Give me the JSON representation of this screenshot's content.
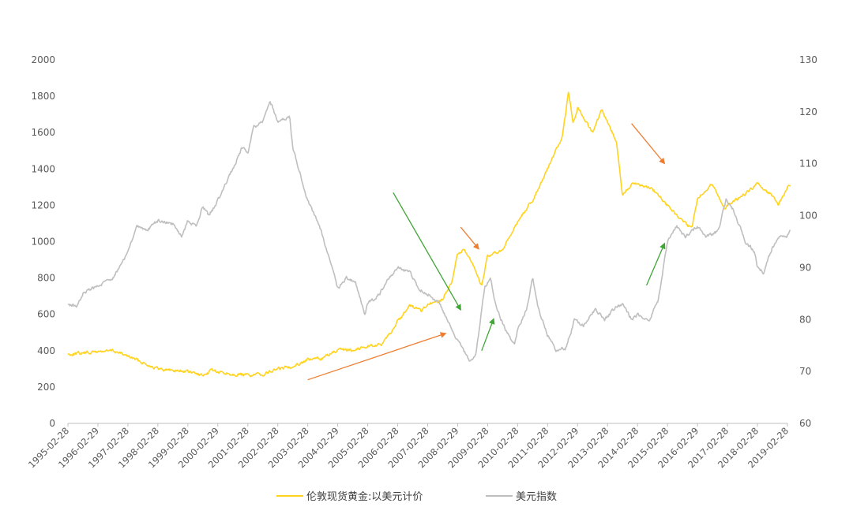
{
  "chart_data": {
    "type": "line",
    "title": "",
    "x_labels": [
      "1995-02-28",
      "1996-02-29",
      "1997-02-28",
      "1998-02-28",
      "1999-02-28",
      "2000-02-29",
      "2001-02-28",
      "2002-02-28",
      "2003-02-28",
      "2004-02-29",
      "2005-02-28",
      "2006-02-28",
      "2007-02-28",
      "2008-02-29",
      "2009-02-28",
      "2010-02-28",
      "2011-02-28",
      "2012-02-29",
      "2013-02-28",
      "2014-02-28",
      "2015-02-28",
      "2016-02-29",
      "2017-02-28",
      "2018-02-28",
      "2019-02-28"
    ],
    "left_axis": {
      "min": 0,
      "max": 2000,
      "ticks": [
        "0",
        "200",
        "400",
        "600",
        "800",
        "1000",
        "1200",
        "1400",
        "1600",
        "1800",
        "2000"
      ]
    },
    "right_axis": {
      "min": 60,
      "max": 130,
      "ticks": [
        "60",
        "70",
        "80",
        "90",
        "100",
        "110",
        "120",
        "130"
      ]
    },
    "series": [
      {
        "name": "伦敦现货黄金:以美元计价",
        "axis": "left",
        "color": "#FFD320",
        "points": [
          [
            1995.0,
            380
          ],
          [
            1996.0,
            395
          ],
          [
            1996.5,
            400
          ],
          [
            1997.0,
            370
          ],
          [
            1997.5,
            335
          ],
          [
            1998.0,
            300
          ],
          [
            1999.0,
            285
          ],
          [
            1999.6,
            258
          ],
          [
            1999.8,
            300
          ],
          [
            2000.0,
            280
          ],
          [
            2001.0,
            265
          ],
          [
            2001.5,
            270
          ],
          [
            2002.0,
            300
          ],
          [
            2002.5,
            315
          ],
          [
            2003.0,
            350
          ],
          [
            2003.5,
            360
          ],
          [
            2004.0,
            400
          ],
          [
            2004.5,
            405
          ],
          [
            2005.0,
            425
          ],
          [
            2005.5,
            435
          ],
          [
            2006.0,
            560
          ],
          [
            2006.4,
            650
          ],
          [
            2006.8,
            620
          ],
          [
            2007.0,
            650
          ],
          [
            2007.5,
            680
          ],
          [
            2007.8,
            780
          ],
          [
            2008.0,
            930
          ],
          [
            2008.2,
            960
          ],
          [
            2008.5,
            870
          ],
          [
            2008.8,
            760
          ],
          [
            2009.0,
            920
          ],
          [
            2009.5,
            950
          ],
          [
            2010.0,
            1110
          ],
          [
            2010.5,
            1230
          ],
          [
            2011.0,
            1400
          ],
          [
            2011.5,
            1580
          ],
          [
            2011.7,
            1830
          ],
          [
            2011.85,
            1650
          ],
          [
            2012.0,
            1740
          ],
          [
            2012.5,
            1600
          ],
          [
            2012.8,
            1720
          ],
          [
            2013.0,
            1660
          ],
          [
            2013.3,
            1550
          ],
          [
            2013.5,
            1250
          ],
          [
            2013.8,
            1320
          ],
          [
            2014.0,
            1320
          ],
          [
            2014.5,
            1290
          ],
          [
            2015.0,
            1200
          ],
          [
            2015.5,
            1110
          ],
          [
            2015.8,
            1070
          ],
          [
            2016.0,
            1240
          ],
          [
            2016.5,
            1320
          ],
          [
            2016.9,
            1180
          ],
          [
            2017.0,
            1200
          ],
          [
            2017.5,
            1250
          ],
          [
            2018.0,
            1320
          ],
          [
            2018.5,
            1250
          ],
          [
            2018.7,
            1200
          ],
          [
            2019.0,
            1300
          ],
          [
            2019.1,
            1310
          ]
        ]
      },
      {
        "name": "美元指数",
        "axis": "right",
        "color": "#BFBFBF",
        "points": [
          [
            1995.0,
            83
          ],
          [
            1995.3,
            82.5
          ],
          [
            1995.5,
            85
          ],
          [
            1996.0,
            86.5
          ],
          [
            1996.5,
            88
          ],
          [
            1997.0,
            93
          ],
          [
            1997.3,
            98
          ],
          [
            1997.6,
            97
          ],
          [
            1998.0,
            99
          ],
          [
            1998.5,
            98.5
          ],
          [
            1998.8,
            96
          ],
          [
            1999.0,
            99
          ],
          [
            1999.3,
            98
          ],
          [
            1999.5,
            102
          ],
          [
            1999.7,
            100
          ],
          [
            2000.0,
            103
          ],
          [
            2000.5,
            109
          ],
          [
            2000.8,
            113
          ],
          [
            2001.0,
            112
          ],
          [
            2001.2,
            117
          ],
          [
            2001.5,
            118
          ],
          [
            2001.75,
            122
          ],
          [
            2002.0,
            118
          ],
          [
            2002.4,
            119
          ],
          [
            2002.5,
            113
          ],
          [
            2003.0,
            103
          ],
          [
            2003.4,
            98
          ],
          [
            2003.6,
            94
          ],
          [
            2004.0,
            86
          ],
          [
            2004.3,
            88
          ],
          [
            2004.6,
            87
          ],
          [
            2004.9,
            81
          ],
          [
            2005.0,
            83
          ],
          [
            2005.4,
            85
          ],
          [
            2005.7,
            88
          ],
          [
            2006.0,
            90
          ],
          [
            2006.4,
            89
          ],
          [
            2006.7,
            86
          ],
          [
            2007.0,
            85
          ],
          [
            2007.4,
            83
          ],
          [
            2007.8,
            78
          ],
          [
            2008.0,
            76
          ],
          [
            2008.4,
            72
          ],
          [
            2008.6,
            73
          ],
          [
            2008.9,
            86
          ],
          [
            2009.1,
            88
          ],
          [
            2009.3,
            82
          ],
          [
            2009.6,
            78
          ],
          [
            2009.9,
            75
          ],
          [
            2010.0,
            78
          ],
          [
            2010.3,
            82
          ],
          [
            2010.5,
            88
          ],
          [
            2010.7,
            82
          ],
          [
            2011.0,
            77
          ],
          [
            2011.3,
            74
          ],
          [
            2011.6,
            74.5
          ],
          [
            2011.9,
            80
          ],
          [
            2012.2,
            79
          ],
          [
            2012.6,
            82
          ],
          [
            2012.9,
            80
          ],
          [
            2013.2,
            82
          ],
          [
            2013.5,
            83
          ],
          [
            2013.8,
            80
          ],
          [
            2014.0,
            81
          ],
          [
            2014.4,
            80
          ],
          [
            2014.7,
            84
          ],
          [
            2015.0,
            95
          ],
          [
            2015.3,
            98
          ],
          [
            2015.6,
            96
          ],
          [
            2016.0,
            98
          ],
          [
            2016.3,
            96
          ],
          [
            2016.7,
            97
          ],
          [
            2016.95,
            103
          ],
          [
            2017.2,
            101
          ],
          [
            2017.6,
            95
          ],
          [
            2017.9,
            93
          ],
          [
            2018.0,
            90
          ],
          [
            2018.2,
            89
          ],
          [
            2018.5,
            94
          ],
          [
            2018.8,
            96
          ],
          [
            2019.0,
            96
          ],
          [
            2019.1,
            97
          ]
        ]
      }
    ],
    "legend": {
      "position": "bottom"
    },
    "annotations": [
      {
        "type": "arrow",
        "color": "#3FA535",
        "from": [
          2005.85,
          1270
        ],
        "to": [
          2008.1,
          625
        ]
      },
      {
        "type": "arrow",
        "color": "#3FA535",
        "from": [
          2008.8,
          400
        ],
        "to": [
          2009.2,
          575
        ]
      },
      {
        "type": "arrow",
        "color": "#3FA535",
        "from": [
          2014.3,
          760
        ],
        "to": [
          2014.9,
          990
        ]
      },
      {
        "type": "arrow",
        "color": "#ED7D31",
        "from": [
          2003.0,
          240
        ],
        "to": [
          2007.6,
          495
        ]
      },
      {
        "type": "arrow",
        "color": "#ED7D31",
        "from": [
          2008.1,
          1080
        ],
        "to": [
          2008.7,
          960
        ]
      },
      {
        "type": "arrow",
        "color": "#ED7D31",
        "from": [
          2013.8,
          1650
        ],
        "to": [
          2014.9,
          1430
        ]
      }
    ]
  }
}
